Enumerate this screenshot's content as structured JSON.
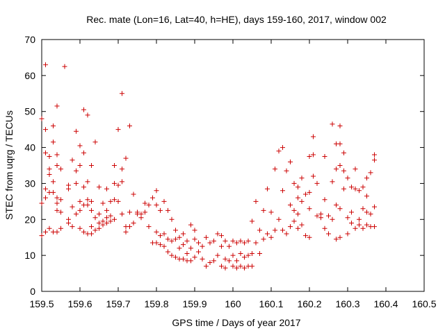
{
  "chart_data": {
    "type": "scatter",
    "title": "Rec. mate (Lon=16, Lat=40, h=HE), days 159-160, 2017, window 002",
    "xlabel": "GPS time / Days of year 2017",
    "ylabel": "STEC from uqrg / TECUs",
    "xlim": [
      159.5,
      160.5
    ],
    "ylim": [
      0,
      70
    ],
    "x_ticks": [
      "159.5",
      "159.6",
      "159.7",
      "159.8",
      "159.9",
      "160",
      "160.1",
      "160.2",
      "160.3",
      "160.4",
      "160.5"
    ],
    "y_ticks": [
      "0",
      "10",
      "20",
      "30",
      "40",
      "50",
      "60",
      "70"
    ],
    "grid": false,
    "legend": "none",
    "marker": "plus",
    "color": "#cc0000",
    "points": [
      [
        159.5,
        48.0
      ],
      [
        159.5,
        24.5
      ],
      [
        159.5,
        15.5
      ],
      [
        159.51,
        63.0
      ],
      [
        159.51,
        45.0
      ],
      [
        159.51,
        38.5
      ],
      [
        159.51,
        28.5
      ],
      [
        159.51,
        26.0
      ],
      [
        159.51,
        16.5
      ],
      [
        159.52,
        37.5
      ],
      [
        159.52,
        34.0
      ],
      [
        159.52,
        32.5
      ],
      [
        159.52,
        27.5
      ],
      [
        159.52,
        17.5
      ],
      [
        159.53,
        46.0
      ],
      [
        159.53,
        41.5
      ],
      [
        159.53,
        30.5
      ],
      [
        159.53,
        27.5
      ],
      [
        159.53,
        16.5
      ],
      [
        159.54,
        51.5
      ],
      [
        159.54,
        38.0
      ],
      [
        159.54,
        35.0
      ],
      [
        159.54,
        26.0
      ],
      [
        159.54,
        24.5
      ],
      [
        159.54,
        22.5
      ],
      [
        159.54,
        16.5
      ],
      [
        159.55,
        34.0
      ],
      [
        159.55,
        25.5
      ],
      [
        159.55,
        22.0
      ],
      [
        159.55,
        17.5
      ],
      [
        159.56,
        62.5
      ],
      [
        159.57,
        29.5
      ],
      [
        159.57,
        28.5
      ],
      [
        159.57,
        20.0
      ],
      [
        159.57,
        19.0
      ],
      [
        159.58,
        36.5
      ],
      [
        159.58,
        23.5
      ],
      [
        159.58,
        18.0
      ],
      [
        159.59,
        44.5
      ],
      [
        159.59,
        33.5
      ],
      [
        159.59,
        30.0
      ],
      [
        159.59,
        21.5
      ],
      [
        159.6,
        40.5
      ],
      [
        159.6,
        35.0
      ],
      [
        159.6,
        25.0
      ],
      [
        159.6,
        22.5
      ],
      [
        159.6,
        17.5
      ],
      [
        159.61,
        50.5
      ],
      [
        159.61,
        38.5
      ],
      [
        159.61,
        29.0
      ],
      [
        159.61,
        24.0
      ],
      [
        159.61,
        16.5
      ],
      [
        159.62,
        49.0
      ],
      [
        159.62,
        30.5
      ],
      [
        159.62,
        25.5
      ],
      [
        159.62,
        24.0
      ],
      [
        159.62,
        16.0
      ],
      [
        159.63,
        35.0
      ],
      [
        159.63,
        25.0
      ],
      [
        159.63,
        22.5
      ],
      [
        159.63,
        18.0
      ],
      [
        159.63,
        16.0
      ],
      [
        159.64,
        41.5
      ],
      [
        159.64,
        20.5
      ],
      [
        159.64,
        17.0
      ],
      [
        159.65,
        29.0
      ],
      [
        159.65,
        21.5
      ],
      [
        159.65,
        19.0
      ],
      [
        159.65,
        17.5
      ],
      [
        159.66,
        24.5
      ],
      [
        159.66,
        19.5
      ],
      [
        159.66,
        18.5
      ],
      [
        159.67,
        28.5
      ],
      [
        159.67,
        22.5
      ],
      [
        159.67,
        20.5
      ],
      [
        159.67,
        19.0
      ],
      [
        159.68,
        25.0
      ],
      [
        159.68,
        21.0
      ],
      [
        159.68,
        19.5
      ],
      [
        159.69,
        35.0
      ],
      [
        159.69,
        30.0
      ],
      [
        159.69,
        25.5
      ],
      [
        159.69,
        20.0
      ],
      [
        159.7,
        45.0
      ],
      [
        159.7,
        29.5
      ],
      [
        159.7,
        25.0
      ],
      [
        159.71,
        55.0
      ],
      [
        159.71,
        34.0
      ],
      [
        159.71,
        30.5
      ],
      [
        159.71,
        21.5
      ],
      [
        159.72,
        37.0
      ],
      [
        159.72,
        18.0
      ],
      [
        159.72,
        16.5
      ],
      [
        159.73,
        46.0
      ],
      [
        159.73,
        22.0
      ],
      [
        159.73,
        18.0
      ],
      [
        159.74,
        27.0
      ],
      [
        159.74,
        19.0
      ],
      [
        159.75,
        22.0
      ],
      [
        159.75,
        21.5
      ],
      [
        159.76,
        21.5
      ],
      [
        159.76,
        20.5
      ],
      [
        159.77,
        24.5
      ],
      [
        159.77,
        22.0
      ],
      [
        159.78,
        24.0
      ],
      [
        159.78,
        18.0
      ],
      [
        159.79,
        26.0
      ],
      [
        159.79,
        13.5
      ],
      [
        159.8,
        28.0
      ],
      [
        159.8,
        24.0
      ],
      [
        159.8,
        16.5
      ],
      [
        159.8,
        13.5
      ],
      [
        159.81,
        22.5
      ],
      [
        159.81,
        15.5
      ],
      [
        159.81,
        13.0
      ],
      [
        159.82,
        25.0
      ],
      [
        159.82,
        16.0
      ],
      [
        159.82,
        12.5
      ],
      [
        159.83,
        22.5
      ],
      [
        159.83,
        14.5
      ],
      [
        159.83,
        11.0
      ],
      [
        159.84,
        20.0
      ],
      [
        159.84,
        14.0
      ],
      [
        159.84,
        10.0
      ],
      [
        159.85,
        17.0
      ],
      [
        159.85,
        14.5
      ],
      [
        159.85,
        9.5
      ],
      [
        159.86,
        15.0
      ],
      [
        159.86,
        12.0
      ],
      [
        159.86,
        9.0
      ],
      [
        159.87,
        16.0
      ],
      [
        159.87,
        13.0
      ],
      [
        159.87,
        9.0
      ],
      [
        159.88,
        14.0
      ],
      [
        159.88,
        10.5
      ],
      [
        159.88,
        8.5
      ],
      [
        159.89,
        18.5
      ],
      [
        159.89,
        12.0
      ],
      [
        159.89,
        8.5
      ],
      [
        159.9,
        17.0
      ],
      [
        159.9,
        14.5
      ],
      [
        159.9,
        9.5
      ],
      [
        159.91,
        13.5
      ],
      [
        159.91,
        11.0
      ],
      [
        159.92,
        12.5
      ],
      [
        159.92,
        9.0
      ],
      [
        159.93,
        15.0
      ],
      [
        159.93,
        7.0
      ],
      [
        159.94,
        13.5
      ],
      [
        159.94,
        8.0
      ],
      [
        159.95,
        14.0
      ],
      [
        159.95,
        8.5
      ],
      [
        159.96,
        16.0
      ],
      [
        159.96,
        10.0
      ],
      [
        159.97,
        15.5
      ],
      [
        159.97,
        12.5
      ],
      [
        159.97,
        7.0
      ],
      [
        159.98,
        14.0
      ],
      [
        159.98,
        9.0
      ],
      [
        159.98,
        6.5
      ],
      [
        159.99,
        12.5
      ],
      [
        159.99,
        8.5
      ],
      [
        160.0,
        14.0
      ],
      [
        160.0,
        10.0
      ],
      [
        160.0,
        7.0
      ],
      [
        160.01,
        13.5
      ],
      [
        160.01,
        8.5
      ],
      [
        160.01,
        6.5
      ],
      [
        160.02,
        14.0
      ],
      [
        160.02,
        10.5
      ],
      [
        160.02,
        7.0
      ],
      [
        160.03,
        13.5
      ],
      [
        160.03,
        9.5
      ],
      [
        160.03,
        6.5
      ],
      [
        160.04,
        14.0
      ],
      [
        160.04,
        10.0
      ],
      [
        160.04,
        7.0
      ],
      [
        160.05,
        19.5
      ],
      [
        160.05,
        10.5
      ],
      [
        160.05,
        7.0
      ],
      [
        160.06,
        25.0
      ],
      [
        160.06,
        13.5
      ],
      [
        160.07,
        17.0
      ],
      [
        160.07,
        10.5
      ],
      [
        160.08,
        22.5
      ],
      [
        160.08,
        14.5
      ],
      [
        160.09,
        28.5
      ],
      [
        160.09,
        16.0
      ],
      [
        160.1,
        22.0
      ],
      [
        160.1,
        15.0
      ],
      [
        160.11,
        34.0
      ],
      [
        160.11,
        17.0
      ],
      [
        160.12,
        39.0
      ],
      [
        160.12,
        20.0
      ],
      [
        160.13,
        40.0
      ],
      [
        160.13,
        28.0
      ],
      [
        160.13,
        17.0
      ],
      [
        160.14,
        33.5
      ],
      [
        160.14,
        16.0
      ],
      [
        160.15,
        36.0
      ],
      [
        160.15,
        24.0
      ],
      [
        160.15,
        18.0
      ],
      [
        160.16,
        30.0
      ],
      [
        160.16,
        22.5
      ],
      [
        160.16,
        19.5
      ],
      [
        160.17,
        29.0
      ],
      [
        160.17,
        26.0
      ],
      [
        160.17,
        21.5
      ],
      [
        160.17,
        17.5
      ],
      [
        160.18,
        31.5
      ],
      [
        160.18,
        25.0
      ],
      [
        160.18,
        18.5
      ],
      [
        160.19,
        27.0
      ],
      [
        160.19,
        15.5
      ],
      [
        160.2,
        37.5
      ],
      [
        160.2,
        27.5
      ],
      [
        160.2,
        23.0
      ],
      [
        160.2,
        15.0
      ],
      [
        160.21,
        43.0
      ],
      [
        160.21,
        38.0
      ],
      [
        160.21,
        32.0
      ],
      [
        160.22,
        30.0
      ],
      [
        160.22,
        21.0
      ],
      [
        160.23,
        21.5
      ],
      [
        160.23,
        20.5
      ],
      [
        160.24,
        37.5
      ],
      [
        160.24,
        25.5
      ],
      [
        160.24,
        17.5
      ],
      [
        160.25,
        21.0
      ],
      [
        160.25,
        16.0
      ],
      [
        160.26,
        46.5
      ],
      [
        160.26,
        30.5
      ],
      [
        160.26,
        20.0
      ],
      [
        160.27,
        41.0
      ],
      [
        160.27,
        34.0
      ],
      [
        160.27,
        24.0
      ],
      [
        160.27,
        14.5
      ],
      [
        160.28,
        46.0
      ],
      [
        160.28,
        41.0
      ],
      [
        160.28,
        35.0
      ],
      [
        160.28,
        23.0
      ],
      [
        160.28,
        15.0
      ],
      [
        160.29,
        38.5
      ],
      [
        160.29,
        33.5
      ],
      [
        160.29,
        28.5
      ],
      [
        160.3,
        31.5
      ],
      [
        160.3,
        20.5
      ],
      [
        160.3,
        16.0
      ],
      [
        160.31,
        29.0
      ],
      [
        160.31,
        22.0
      ],
      [
        160.31,
        19.0
      ],
      [
        160.32,
        34.0
      ],
      [
        160.32,
        28.5
      ],
      [
        160.32,
        17.5
      ],
      [
        160.33,
        28.0
      ],
      [
        160.33,
        20.0
      ],
      [
        160.33,
        18.5
      ],
      [
        160.34,
        29.0
      ],
      [
        160.34,
        23.0
      ],
      [
        160.34,
        17.5
      ],
      [
        160.35,
        31.5
      ],
      [
        160.35,
        26.5
      ],
      [
        160.35,
        22.0
      ],
      [
        160.35,
        18.5
      ],
      [
        160.36,
        33.0
      ],
      [
        160.36,
        21.5
      ],
      [
        160.36,
        18.0
      ],
      [
        160.37,
        38.0
      ],
      [
        160.37,
        36.5
      ],
      [
        160.37,
        23.5
      ],
      [
        160.37,
        18.0
      ]
    ]
  }
}
